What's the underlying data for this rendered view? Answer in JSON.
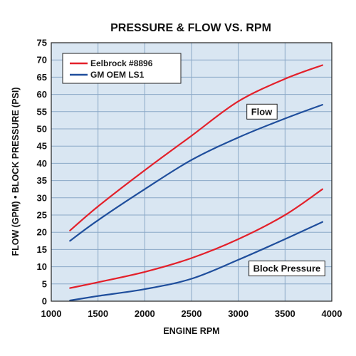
{
  "chart_data": {
    "type": "line",
    "title": "PRESSURE & FLOW VS. RPM",
    "xlabel": "ENGINE RPM",
    "ylabel": "FLOW (GPM) • BLOCK PRESSURE (PSI)",
    "xlim": [
      1000,
      4000
    ],
    "ylim": [
      0,
      75
    ],
    "x_ticks": [
      1000,
      1500,
      2000,
      2500,
      3000,
      3500,
      4000
    ],
    "y_ticks": [
      0,
      5,
      10,
      15,
      20,
      25,
      30,
      35,
      40,
      45,
      50,
      55,
      60,
      65,
      70,
      75
    ],
    "grid": true,
    "legend_position": "top-left",
    "background_color": "#d9e6f2",
    "series": [
      {
        "name": "Eelbrock #8896",
        "group": "Flow",
        "color": "#e3202a",
        "points": [
          [
            1200,
            20.5
          ],
          [
            1500,
            27.5
          ],
          [
            2000,
            38
          ],
          [
            2500,
            48
          ],
          [
            3000,
            58
          ],
          [
            3500,
            64.5
          ],
          [
            3900,
            68.5
          ]
        ]
      },
      {
        "name": "GM OEM LS1",
        "group": "Flow",
        "color": "#1f4e9c",
        "points": [
          [
            1200,
            17.5
          ],
          [
            1500,
            23.5
          ],
          [
            2000,
            32.5
          ],
          [
            2500,
            41
          ],
          [
            3000,
            47.5
          ],
          [
            3500,
            53
          ],
          [
            3900,
            57
          ]
        ]
      },
      {
        "name": "Eelbrock #8896",
        "group": "Block Pressure",
        "color": "#e3202a",
        "points": [
          [
            1200,
            3.8
          ],
          [
            1500,
            5.5
          ],
          [
            2000,
            8.5
          ],
          [
            2500,
            12.5
          ],
          [
            3000,
            18
          ],
          [
            3500,
            25
          ],
          [
            3900,
            32.5
          ]
        ]
      },
      {
        "name": "GM OEM LS1",
        "group": "Block Pressure",
        "color": "#1f4e9c",
        "points": [
          [
            1200,
            0.2
          ],
          [
            1500,
            1.5
          ],
          [
            2000,
            3.5
          ],
          [
            2500,
            6.5
          ],
          [
            3000,
            12
          ],
          [
            3500,
            18
          ],
          [
            3900,
            23
          ]
        ]
      }
    ],
    "legend": [
      {
        "label": "Eelbrock #8896",
        "color": "#e3202a"
      },
      {
        "label": "GM OEM LS1",
        "color": "#1f4e9c"
      }
    ],
    "annotations": [
      {
        "text": "Flow",
        "x": 3250,
        "y": 55
      },
      {
        "text": "Block Pressure",
        "x": 3520,
        "y": 9.5
      }
    ]
  }
}
